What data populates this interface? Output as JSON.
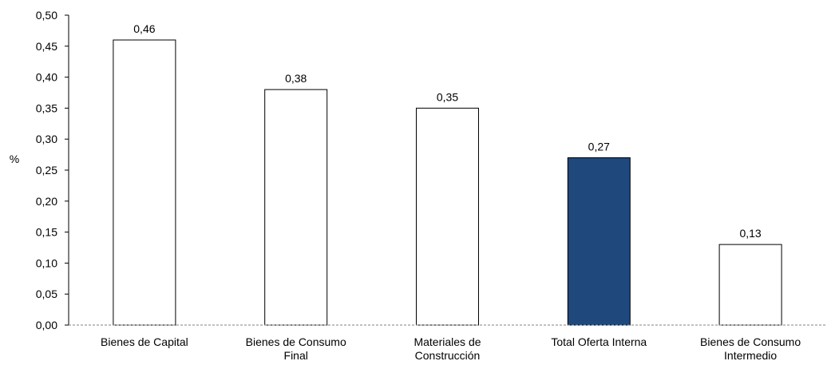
{
  "chart_data": {
    "type": "bar",
    "ylabel": "%",
    "ylim": [
      0,
      0.5
    ],
    "yticks": [
      "0,00",
      "0,05",
      "0,10",
      "0,15",
      "0,20",
      "0,25",
      "0,30",
      "0,35",
      "0,40",
      "0,45",
      "0,50"
    ],
    "ytick_values": [
      0,
      0.05,
      0.1,
      0.15,
      0.2,
      0.25,
      0.3,
      0.35,
      0.4,
      0.45,
      0.5
    ],
    "grid": false,
    "categories": [
      [
        "Bienes de Capital"
      ],
      [
        "Bienes de Consumo",
        "Final"
      ],
      [
        "Materiales de",
        "Construcción"
      ],
      [
        "Total Oferta Interna"
      ],
      [
        "Bienes de Consumo",
        "Intermedio"
      ]
    ],
    "values": [
      0.46,
      0.38,
      0.35,
      0.27,
      0.13
    ],
    "data_labels": [
      "0,46",
      "0,38",
      "0,35",
      "0,27",
      "0,13"
    ],
    "colors": [
      "#ffffff",
      "#ffffff",
      "#ffffff",
      "#1f497d",
      "#ffffff"
    ],
    "bar_stroke": "#000000"
  }
}
